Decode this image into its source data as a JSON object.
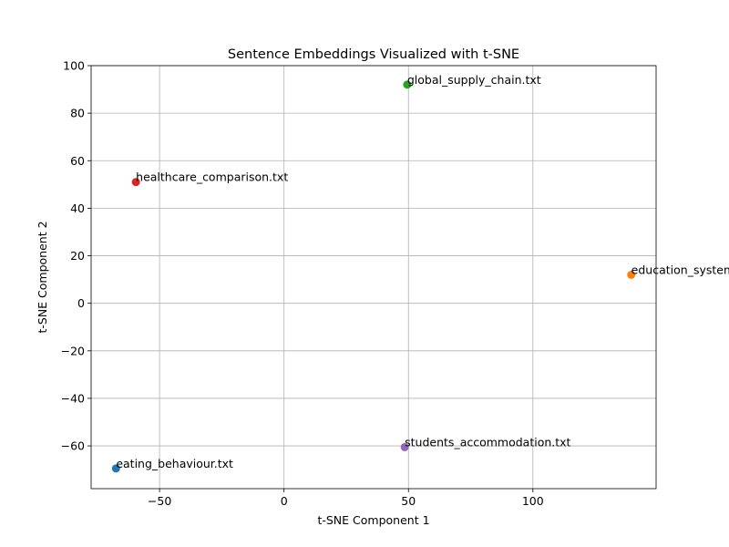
{
  "chart_data": {
    "type": "scatter",
    "title": "Sentence Embeddings Visualized with t-SNE",
    "xlabel": "t-SNE Component 1",
    "ylabel": "t-SNE Component 2",
    "xlim": [
      -77.5,
      149.5
    ],
    "ylim": [
      -78,
      100
    ],
    "xticks": [
      -50,
      0,
      50,
      100
    ],
    "yticks": [
      -60,
      -40,
      -20,
      0,
      20,
      40,
      60,
      80,
      100
    ],
    "xtick_labels": [
      "−50",
      "0",
      "50",
      "100"
    ],
    "ytick_labels": [
      "−60",
      "−40",
      "−20",
      "0",
      "20",
      "40",
      "60",
      "80",
      "100"
    ],
    "grid": true,
    "points": [
      {
        "label": "eating_behaviour.txt",
        "x": -67.5,
        "y": -69.5,
        "color": "#1f77b4"
      },
      {
        "label": "education_system.txt",
        "x": 139.5,
        "y": 12,
        "color": "#ff7f0e"
      },
      {
        "label": "global_supply_chain.txt",
        "x": 49.5,
        "y": 92,
        "color": "#2ca02c"
      },
      {
        "label": "healthcare_comparison.txt",
        "x": -59.5,
        "y": 51,
        "color": "#d62728"
      },
      {
        "label": "students_accommodation.txt",
        "x": 48.5,
        "y": -60.5,
        "color": "#9467bd"
      }
    ]
  }
}
